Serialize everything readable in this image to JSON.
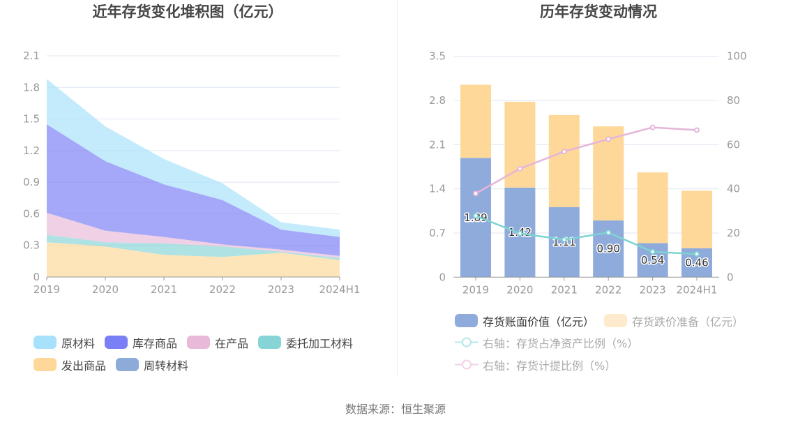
{
  "footer": {
    "source": "数据来源：恒生聚源"
  },
  "chart_data": [
    {
      "type": "area",
      "stacked": true,
      "title": "近年存货变化堆积图（亿元）",
      "xlabel": "",
      "ylabel": "",
      "categories": [
        "2019",
        "2020",
        "2021",
        "2022",
        "2023",
        "2024H1"
      ],
      "ylim": [
        0,
        2.1
      ],
      "yticks": [
        0,
        0.3,
        0.6,
        0.9,
        1.2,
        1.5,
        1.8,
        2.1
      ],
      "grid": true,
      "legend_position": "bottom-left",
      "series": [
        {
          "name": "原材料",
          "color": "#a8e1fb",
          "values": [
            0.43,
            0.33,
            0.24,
            0.16,
            0.07,
            0.07
          ]
        },
        {
          "name": "库存商品",
          "color": "#7b7ff5",
          "values": [
            0.84,
            0.66,
            0.5,
            0.42,
            0.19,
            0.18
          ]
        },
        {
          "name": "在产品",
          "color": "#e8b9d8",
          "values": [
            0.21,
            0.11,
            0.06,
            0.02,
            0.02,
            0.02
          ]
        },
        {
          "name": "委托加工材料",
          "color": "#87d4d6",
          "values": [
            0.07,
            0.04,
            0.11,
            0.1,
            0.01,
            0.02
          ]
        },
        {
          "name": "发出商品",
          "color": "#fdd898",
          "values": [
            0.33,
            0.29,
            0.21,
            0.19,
            0.23,
            0.16
          ]
        },
        {
          "name": "周转材料",
          "color": "#8dabd9",
          "values": [
            0,
            0,
            0,
            0,
            0,
            0
          ]
        }
      ]
    },
    {
      "type": "bar+line",
      "title": "历年存货变动情况",
      "xlabel": "",
      "categories": [
        "2019",
        "2020",
        "2021",
        "2022",
        "2023",
        "2024H1"
      ],
      "ylim_left": [
        0,
        3.5
      ],
      "yticks_left": [
        0,
        0.7,
        1.4,
        2.1,
        2.8,
        3.5
      ],
      "ylim_right": [
        0,
        100
      ],
      "yticks_right": [
        0,
        20,
        40,
        60,
        80,
        100
      ],
      "grid": true,
      "legend_position": "bottom-left",
      "series": [
        {
          "name": "存货账面价值（亿元）",
          "type": "bar",
          "stack": "total",
          "axis": "left",
          "color": "#8eabdb",
          "legend_color": "#8eabdb",
          "legend_text_color": "#333333",
          "values": [
            1.89,
            1.42,
            1.11,
            0.9,
            0.54,
            0.46
          ],
          "show_labels": true
        },
        {
          "name": "存货跌价准备（亿元）",
          "type": "bar",
          "stack": "total",
          "axis": "left",
          "color": "#fed899",
          "legend_color": "#feeacd",
          "legend_text_color": "#aaaaaa",
          "values": [
            1.16,
            1.36,
            1.46,
            1.49,
            1.12,
            0.91
          ]
        },
        {
          "name": "右轴：存货占净资产比例（%）",
          "type": "line",
          "axis": "right",
          "color": "#7ed3d4",
          "legend_color": "#b5e8e8",
          "legend_text_color": "#aaaaaa",
          "values": [
            27.8,
            19.8,
            17.0,
            20.2,
            11.5,
            10.5
          ]
        },
        {
          "name": "右轴：存货计提比例（%）",
          "type": "line",
          "axis": "right",
          "color": "#e5b5d9",
          "legend_color": "#f2d2e8",
          "legend_text_color": "#aaaaaa",
          "values": [
            37.9,
            49.1,
            56.9,
            62.5,
            67.8,
            66.6
          ]
        }
      ]
    }
  ]
}
